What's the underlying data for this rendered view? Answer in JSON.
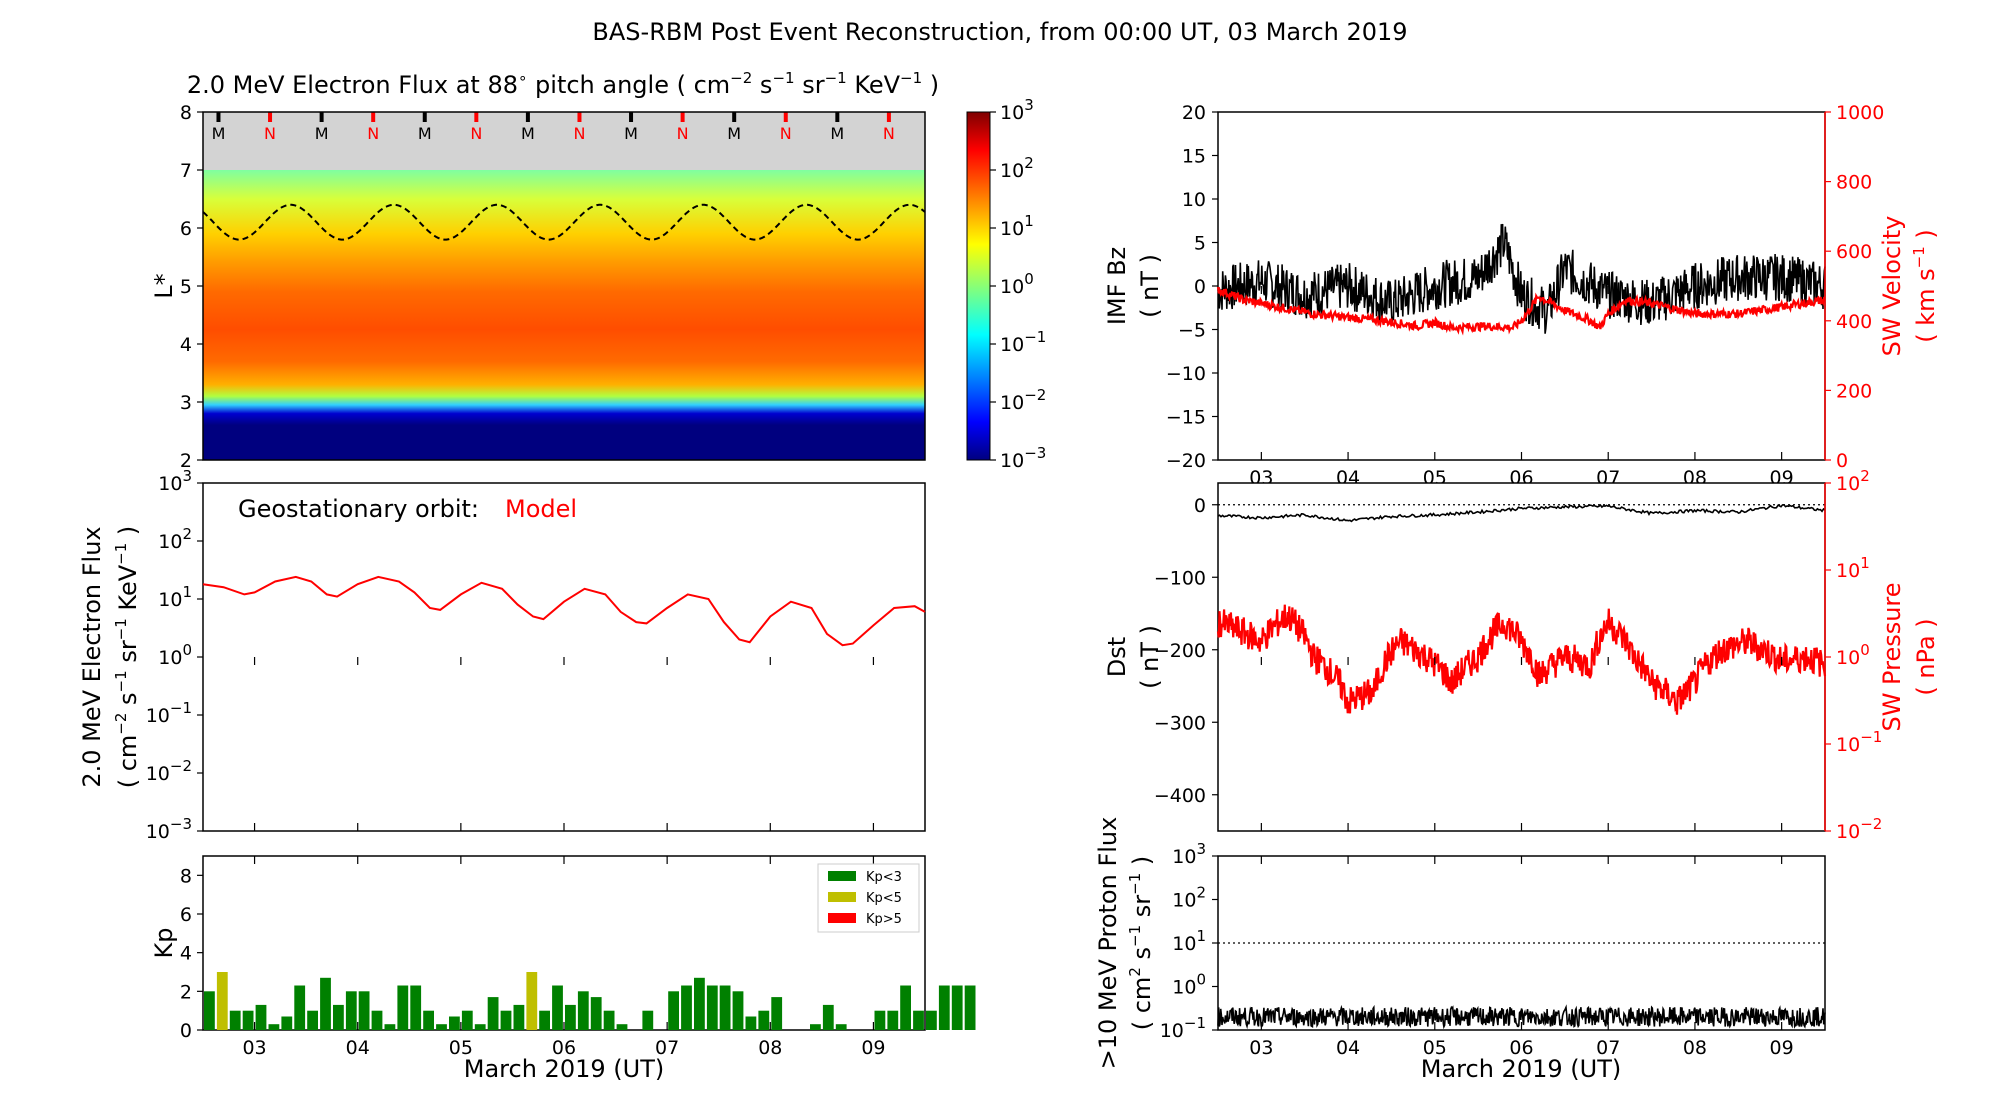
{
  "figure_title": "BAS-RBM Post Event Reconstruction, from 00:00 UT, 03 March 2019",
  "x_axis": {
    "label": "March 2019 (UT)",
    "ticks": [
      "03",
      "04",
      "05",
      "06",
      "07",
      "08",
      "09"
    ]
  },
  "chart_data": [
    {
      "id": "electron-flux-heatmap",
      "type": "heatmap",
      "title_parts": {
        "prefix": "2.0 MeV Electron Flux at 88",
        "deg": "∘",
        "mid": " pitch angle ( cm",
        "e1": "−2",
        "s": " s",
        "e2": "−1",
        "sr": " sr",
        "e3": "−1",
        "kev": " KeV",
        "e4": "−1",
        "suffix": " )"
      },
      "ylabel": "L*",
      "ylim": [
        2,
        8
      ],
      "yticks": [
        "2",
        "3",
        "4",
        "5",
        "6",
        "7",
        "8"
      ],
      "xlim": [
        -0.5,
        6.5
      ],
      "colorbar": {
        "scale": "log",
        "range": [
          0.001,
          1000
        ],
        "base": "10",
        "exponents": [
          "−3",
          "−2",
          "−1",
          "0",
          "1",
          "2",
          "3"
        ]
      },
      "no_data_region_L": [
        7,
        8
      ],
      "mlt_markers": [
        "M",
        "N",
        "M",
        "N",
        "M",
        "N",
        "M",
        "N",
        "M",
        "N",
        "M",
        "N",
        "M",
        "N"
      ],
      "marker_colors": {
        "M": "#000000",
        "N": "#ff0000"
      },
      "dashed_line": {
        "description": "geostationary L*",
        "mean": 6.1,
        "amplitude": 0.3,
        "period_days": 1
      }
    },
    {
      "id": "geo-electron-flux",
      "type": "line",
      "ylabel_parts": {
        "line1": "2.0 MeV Electron Flux",
        "line2a": "( cm",
        "e1": "−2",
        "s": " s",
        "e2": "−1",
        "sr": " sr",
        "e3": "−1",
        "kev": " KeV",
        "e4": "−1",
        "close": " )"
      },
      "annotation": {
        "label": "Geostationary orbit:",
        "model": "Model"
      },
      "yscale": "log",
      "ylim": [
        0.001,
        1000
      ],
      "yticks": {
        "base": "10",
        "exponents": [
          "−3",
          "−2",
          "−1",
          "0",
          "1",
          "2",
          "3"
        ]
      },
      "series": [
        {
          "name": "Model",
          "color": "#ff0000",
          "x": [
            -0.5,
            -0.3,
            -0.1,
            0.0,
            0.2,
            0.4,
            0.55,
            0.7,
            0.8,
            1.0,
            1.2,
            1.4,
            1.55,
            1.7,
            1.8,
            2.0,
            2.2,
            2.4,
            2.55,
            2.7,
            2.8,
            3.0,
            3.2,
            3.4,
            3.55,
            3.7,
            3.8,
            4.0,
            4.2,
            4.4,
            4.55,
            4.7,
            4.8,
            5.0,
            5.2,
            5.4,
            5.55,
            5.7,
            5.8,
            6.0,
            6.2,
            6.4,
            6.5
          ],
          "values": [
            18,
            16,
            12,
            13,
            20,
            24,
            20,
            12,
            11,
            18,
            24,
            20,
            13,
            7,
            6.5,
            12,
            19,
            15,
            8,
            5,
            4.5,
            9,
            15,
            12,
            6,
            4,
            3.8,
            7,
            12,
            10,
            4,
            2,
            1.8,
            5,
            9,
            7,
            2.5,
            1.6,
            1.7,
            3.5,
            7,
            7.5,
            6
          ]
        }
      ]
    },
    {
      "id": "kp-index",
      "type": "bar",
      "ylabel": "Kp",
      "ylim": [
        0,
        9
      ],
      "yticks": [
        "0",
        "2",
        "4",
        "6",
        "8"
      ],
      "bar_width_days": 0.1,
      "x_start_days": -0.5,
      "values": [
        2.0,
        3.0,
        1.0,
        1.0,
        1.3,
        0.3,
        0.7,
        2.3,
        1.0,
        2.7,
        1.3,
        2.0,
        2.0,
        1.0,
        0.3,
        2.3,
        2.3,
        1.0,
        0.3,
        0.7,
        1.0,
        0.3,
        1.7,
        1.0,
        1.3,
        3.0,
        1.0,
        2.3,
        1.3,
        2.0,
        1.7,
        1.0,
        0.3,
        0.0,
        1.0,
        0.0,
        2.0,
        2.3,
        2.7,
        2.3,
        2.3,
        2.0,
        0.7,
        1.0,
        1.7,
        0.0,
        0.0,
        0.3,
        1.3,
        0.3,
        0.0,
        0.0,
        1.0,
        1.0,
        2.3,
        1.0,
        1.0,
        2.3,
        2.3,
        2.3
      ],
      "thresholds": [
        3,
        5
      ],
      "legend": [
        {
          "label": "Kp<3",
          "color": "#008000"
        },
        {
          "label": "Kp<5",
          "color": "#bfbf00"
        },
        {
          "label": "Kp>5",
          "color": "#ff0000"
        }
      ],
      "legend_position": "top-right"
    },
    {
      "id": "imf-sw-velocity",
      "type": "line",
      "left_axis": {
        "label_line1": "IMF Bz",
        "label_line2": "( nT )",
        "ylim": [
          -20,
          20
        ],
        "yticks": [
          "−20",
          "−15",
          "−10",
          "−5",
          "0",
          "5",
          "10",
          "15",
          "20"
        ]
      },
      "right_axis": {
        "label_line1": "SW Velocity",
        "label_line2a": "( km s",
        "e": "−1",
        "label_line2b": " )",
        "ylim": [
          0,
          1000
        ],
        "yticks": [
          "0",
          "200",
          "400",
          "600",
          "800",
          "1000"
        ],
        "color": "#ff0000"
      },
      "series": [
        {
          "name": "IMF Bz",
          "axis": "left",
          "color": "#000000",
          "x": [
            -0.5,
            0.0,
            0.5,
            1.0,
            1.5,
            2.0,
            2.5,
            2.8,
            3.0,
            3.3,
            3.5,
            4.0,
            4.5,
            5.0,
            5.5,
            6.0,
            6.5
          ],
          "values": [
            -0.5,
            0.5,
            -1,
            0,
            -2,
            0,
            1,
            5,
            -1,
            -3,
            2,
            -1,
            -2,
            0,
            1,
            1,
            0
          ]
        },
        {
          "name": "SW Velocity",
          "axis": "right",
          "color": "#ff0000",
          "x": [
            -0.5,
            -0.2,
            0.2,
            0.6,
            1.0,
            1.4,
            1.8,
            2.0,
            2.2,
            2.6,
            2.9,
            3.0,
            3.2,
            3.5,
            3.8,
            3.9,
            4.0,
            4.2,
            4.5,
            5.0,
            5.5,
            6.0,
            6.5
          ],
          "values": [
            490,
            460,
            440,
            420,
            410,
            400,
            385,
            395,
            380,
            385,
            380,
            400,
            470,
            430,
            400,
            380,
            420,
            460,
            450,
            420,
            420,
            440,
            460
          ]
        }
      ]
    },
    {
      "id": "dst-sw-pressure",
      "type": "line",
      "left_axis": {
        "label_line1": "Dst",
        "label_line2": "( nT )",
        "ylim": [
          -450,
          30
        ],
        "yticks": [
          "−400",
          "−300",
          "−200",
          "−100",
          "0"
        ]
      },
      "right_axis": {
        "label_line1": "SW Pressure",
        "label_line2": "( nPa )",
        "yscale": "log",
        "ylim": [
          0.01,
          100
        ],
        "base": "10",
        "exponents": [
          "−2",
          "−1",
          "0",
          "1",
          "2"
        ],
        "color": "#ff0000"
      },
      "series": [
        {
          "name": "Dst",
          "axis": "left",
          "color": "#000000",
          "x": [
            -0.5,
            0.0,
            0.5,
            1.0,
            1.5,
            2.0,
            2.5,
            3.0,
            3.5,
            4.0,
            4.5,
            5.0,
            5.5,
            6.0,
            6.5
          ],
          "values": [
            -15,
            -18,
            -14,
            -22,
            -16,
            -14,
            -10,
            -5,
            -3,
            -2,
            -12,
            -8,
            -10,
            -1,
            -8
          ]
        },
        {
          "name": "SW Pressure",
          "axis": "right",
          "color": "#ff0000",
          "x": [
            -0.5,
            0.0,
            0.3,
            0.6,
            0.9,
            1.0,
            1.3,
            1.6,
            1.9,
            2.2,
            2.5,
            2.8,
            3.0,
            3.2,
            3.5,
            3.8,
            4.0,
            4.3,
            4.5,
            4.8,
            5.0,
            5.3,
            5.6,
            6.0,
            6.3,
            6.5
          ],
          "values": [
            2.5,
            1.5,
            3.0,
            1.0,
            0.5,
            0.3,
            0.4,
            1.5,
            1.0,
            0.5,
            1.0,
            2.5,
            1.5,
            0.6,
            1.0,
            0.8,
            2.5,
            1.0,
            0.5,
            0.3,
            0.5,
            1.2,
            1.5,
            0.9,
            1.0,
            0.8
          ]
        }
      ],
      "reference_line": {
        "value": 0,
        "style": "dotted"
      }
    },
    {
      "id": "proton-flux",
      "type": "line",
      "ylabel_line1": ">10 MeV Proton Flux",
      "ylabel_parts": {
        "open": "( cm",
        "e1": "2",
        "s": " s",
        "e2": "−1",
        "sr": " sr",
        "e3": "−1",
        "close": " )"
      },
      "yscale": "log",
      "ylim": [
        0.1,
        1000
      ],
      "yticks": {
        "base": "10",
        "exponents": [
          "−1",
          "0",
          "1",
          "2",
          "3"
        ]
      },
      "series": [
        {
          "name": ">10 MeV protons",
          "color": "#000000",
          "mean": 0.2
        }
      ],
      "reference_line": {
        "value": 10,
        "style": "dotted"
      }
    }
  ]
}
